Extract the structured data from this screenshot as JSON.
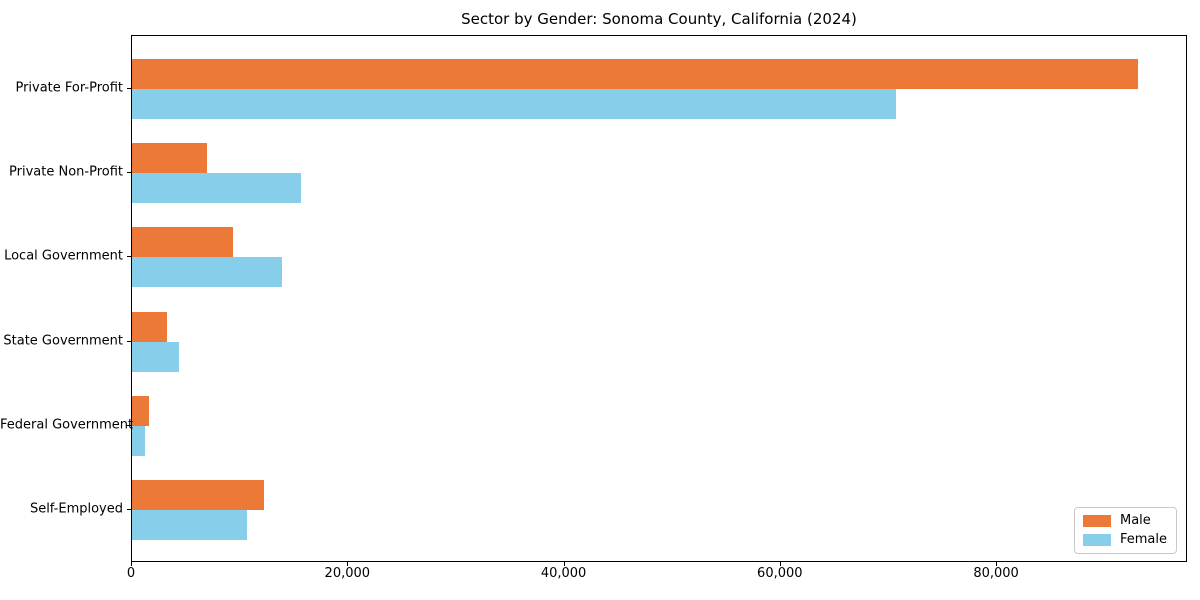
{
  "chart_data": {
    "type": "bar",
    "orientation": "horizontal",
    "title": "Sector by Gender: Sonoma County, California (2024)",
    "categories": [
      "Private For-Profit",
      "Private Non-Profit",
      "Local Government",
      "State Government",
      "Federal Government",
      "Self-Employed"
    ],
    "series": [
      {
        "name": "Male",
        "color": "#ed7939",
        "values": [
          93000,
          6900,
          9300,
          3200,
          1600,
          12200
        ]
      },
      {
        "name": "Female",
        "color": "#87ceeb",
        "values": [
          70600,
          15600,
          13900,
          4300,
          1200,
          10600
        ]
      }
    ],
    "xlabel": "",
    "ylabel": "",
    "xlim": [
      0,
      97650
    ],
    "xticks": {
      "values": [
        0,
        20000,
        40000,
        60000,
        80000
      ],
      "labels": [
        "0",
        "20,000",
        "40,000",
        "60,000",
        "80,000"
      ]
    },
    "grid": false,
    "legend": {
      "position": "lower right",
      "labels": [
        "Male",
        "Female"
      ]
    }
  },
  "colors": {
    "male": "#ed7939",
    "female": "#87ceeb",
    "frame": "#000000",
    "background": "#ffffff"
  }
}
